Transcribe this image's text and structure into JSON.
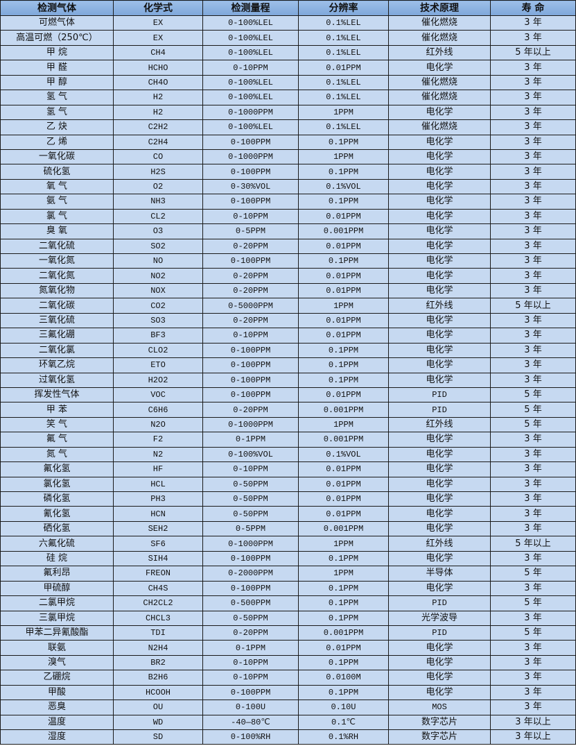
{
  "table": {
    "headers": [
      "检测气体",
      "化学式",
      "检测量程",
      "分辨率",
      "技术原理",
      "寿 命"
    ],
    "rows": [
      [
        "可燃气体",
        "EX",
        "0-100%LEL",
        "0.1%LEL",
        "催化燃烧",
        "3 年"
      ],
      [
        "高温可燃（250℃）",
        "EX",
        "0-100%LEL",
        "0.1%LEL",
        "催化燃烧",
        "3 年"
      ],
      [
        "甲 烷",
        "CH4",
        "0-100%LEL",
        "0.1%LEL",
        "红外线",
        "5 年以上"
      ],
      [
        "甲 醛",
        "HCHO",
        "0-10PPM",
        "0.01PPM",
        "电化学",
        "3 年"
      ],
      [
        "甲 醇",
        "CH4O",
        "0-100%LEL",
        "0.1%LEL",
        "催化燃烧",
        "3 年"
      ],
      [
        "氢 气",
        "H2",
        "0-100%LEL",
        "0.1%LEL",
        "催化燃烧",
        "3 年"
      ],
      [
        "氢 气",
        "H2",
        "0-1000PPM",
        "1PPM",
        "电化学",
        "3 年"
      ],
      [
        "乙 炔",
        "C2H2",
        "0-100%LEL",
        "0.1%LEL",
        "催化燃烧",
        "3 年"
      ],
      [
        "乙 烯",
        "C2H4",
        "0-100PPM",
        "0.1PPM",
        "电化学",
        "3 年"
      ],
      [
        "一氧化碳",
        "CO",
        "0-1000PPM",
        "1PPM",
        "电化学",
        "3 年"
      ],
      [
        "硫化氢",
        "H2S",
        "0-100PPM",
        "0.1PPM",
        "电化学",
        "3 年"
      ],
      [
        "氧 气",
        "O2",
        "0-30%VOL",
        "0.1%VOL",
        "电化学",
        "3 年"
      ],
      [
        "氨 气",
        "NH3",
        "0-100PPM",
        "0.1PPM",
        "电化学",
        "3 年"
      ],
      [
        "氯 气",
        "CL2",
        "0-10PPM",
        "0.01PPM",
        "电化学",
        "3 年"
      ],
      [
        "臭 氧",
        "O3",
        "0-5PPM",
        "0.001PPM",
        "电化学",
        "3 年"
      ],
      [
        "二氧化硫",
        "SO2",
        "0-20PPM",
        "0.01PPM",
        "电化学",
        "3 年"
      ],
      [
        "一氧化氮",
        "NO",
        "0-100PPM",
        "0.1PPM",
        "电化学",
        "3 年"
      ],
      [
        "二氧化氮",
        "NO2",
        "0-20PPM",
        "0.01PPM",
        "电化学",
        "3 年"
      ],
      [
        "氮氧化物",
        "NOX",
        "0-20PPM",
        "0.01PPM",
        "电化学",
        "3 年"
      ],
      [
        "二氧化碳",
        "CO2",
        "0-5000PPM",
        "1PPM",
        "红外线",
        "5 年以上"
      ],
      [
        "三氧化硫",
        "SO3",
        "0-20PPM",
        "0.01PPM",
        "电化学",
        "3 年"
      ],
      [
        "三氟化硼",
        "BF3",
        "0-10PPM",
        "0.01PPM",
        "电化学",
        "3 年"
      ],
      [
        "二氧化氯",
        "CLO2",
        "0-100PPM",
        "0.1PPM",
        "电化学",
        "3 年"
      ],
      [
        "环氧乙烷",
        "ETO",
        "0-100PPM",
        "0.1PPM",
        "电化学",
        "3 年"
      ],
      [
        "过氧化氢",
        "H2O2",
        "0-100PPM",
        "0.1PPM",
        "电化学",
        "3 年"
      ],
      [
        "挥发性气体",
        "VOC",
        "0-100PPM",
        "0.01PPM",
        "PID",
        "5 年"
      ],
      [
        "甲 苯",
        "C6H6",
        "0-20PPM",
        "0.001PPM",
        "PID",
        "5 年"
      ],
      [
        "笑 气",
        "N2O",
        "0-1000PPM",
        "1PPM",
        "红外线",
        "5 年"
      ],
      [
        "氟 气",
        "F2",
        "0-1PPM",
        "0.001PPM",
        "电化学",
        "3 年"
      ],
      [
        "氮 气",
        "N2",
        "0-100%VOL",
        "0.1%VOL",
        "电化学",
        "3 年"
      ],
      [
        "氟化氢",
        "HF",
        "0-10PPM",
        "0.01PPM",
        "电化学",
        "3 年"
      ],
      [
        "氯化氢",
        "HCL",
        "0-50PPM",
        "0.01PPM",
        "电化学",
        "3 年"
      ],
      [
        "磷化氢",
        "PH3",
        "0-50PPM",
        "0.01PPM",
        "电化学",
        "3 年"
      ],
      [
        "氰化氢",
        "HCN",
        "0-50PPM",
        "0.01PPM",
        "电化学",
        "3 年"
      ],
      [
        "硒化氢",
        "SEH2",
        "0-5PPM",
        "0.001PPM",
        "电化学",
        "3 年"
      ],
      [
        "六氟化硫",
        "SF6",
        "0-1000PPM",
        "1PPM",
        "红外线",
        "5 年以上"
      ],
      [
        "硅 烷",
        "SIH4",
        "0-100PPM",
        "0.1PPM",
        "电化学",
        "3 年"
      ],
      [
        "氟利昂",
        "FREON",
        "0-2000PPM",
        "1PPM",
        "半导体",
        "5 年"
      ],
      [
        "甲硫醇",
        "CH4S",
        "0-100PPM",
        "0.1PPM",
        "电化学",
        "3 年"
      ],
      [
        "二氯甲烷",
        "CH2CL2",
        "0-500PPM",
        "0.1PPM",
        "PID",
        "5 年"
      ],
      [
        "三氯甲烷",
        "CHCL3",
        "0-50PPM",
        "0.1PPM",
        "光学波导",
        "3 年"
      ],
      [
        "甲苯二异氰酸酯",
        "TDI",
        "0-20PPM",
        "0.001PPM",
        "PID",
        "5 年"
      ],
      [
        "联氨",
        "N2H4",
        "0-1PPM",
        "0.01PPM",
        "电化学",
        "3 年"
      ],
      [
        "溴气",
        "BR2",
        "0-10PPM",
        "0.1PPM",
        "电化学",
        "3 年"
      ],
      [
        "乙硼烷",
        "B2H6",
        "0-10PPM",
        "0.0100M",
        "电化学",
        "3 年"
      ],
      [
        "甲酸",
        "HCOOH",
        "0-100PPM",
        "0.1PPM",
        "电化学",
        "3 年"
      ],
      [
        "恶臭",
        "OU",
        "0-100U",
        "0.10U",
        "MOS",
        "3 年"
      ],
      [
        "温度",
        "WD",
        "-40—80℃",
        "0.1℃",
        "数字芯片",
        "3 年以上"
      ],
      [
        "湿度",
        "SD",
        "0-100%RH",
        "0.1%RH",
        "数字芯片",
        "3 年以上"
      ]
    ]
  },
  "colors": {
    "header": "#8db4e2",
    "cell": "#c6d9f1",
    "border": "#1a1a1a"
  }
}
